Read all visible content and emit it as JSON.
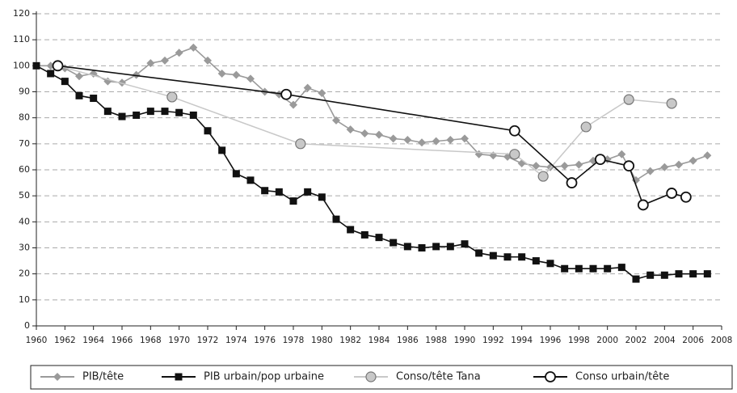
{
  "chart_data": {
    "type": "line",
    "xlim": [
      1960,
      2008
    ],
    "xticks": [
      1960,
      1962,
      1964,
      1966,
      1968,
      1970,
      1972,
      1974,
      1976,
      1978,
      1980,
      1982,
      1984,
      1986,
      1988,
      1990,
      1992,
      1994,
      1996,
      1998,
      2000,
      2002,
      2004,
      2006,
      2008
    ],
    "ylim": [
      0,
      120
    ],
    "yticks": [
      0,
      10,
      20,
      30,
      40,
      50,
      60,
      70,
      80,
      90,
      100,
      110,
      120
    ],
    "grid": true,
    "legend": "bottom",
    "series": [
      {
        "name": "PIB/tête",
        "color": "#9a9a9a",
        "marker": "diamond",
        "x": [
          1960,
          1961,
          1962,
          1963,
          1964,
          1965,
          1966,
          1967,
          1968,
          1969,
          1970,
          1971,
          1972,
          1973,
          1974,
          1975,
          1976,
          1977,
          1978,
          1979,
          1980,
          1981,
          1982,
          1983,
          1984,
          1985,
          1986,
          1987,
          1988,
          1989,
          1990,
          1991,
          1992,
          1993,
          1994,
          1995,
          1996,
          1997,
          1998,
          1999,
          2000,
          2001,
          2002,
          2003,
          2004,
          2005,
          2006,
          2007
        ],
        "values": [
          100,
          100,
          99,
          96,
          97,
          94,
          93.5,
          96.5,
          101,
          102,
          105,
          107,
          102,
          97,
          96.5,
          95,
          90,
          89,
          85,
          91.5,
          89.5,
          79,
          75.5,
          74,
          73.5,
          72,
          71.5,
          70.5,
          71,
          71.5,
          72,
          66,
          65.5,
          65,
          62.5,
          61.5,
          61,
          61.5,
          62,
          63.5,
          64,
          66,
          56,
          59.5,
          61,
          62,
          63.5,
          65.5
        ]
      },
      {
        "name": "PIB urbain/pop urbaine",
        "color": "#111111",
        "marker": "square",
        "x": [
          1960,
          1961,
          1962,
          1963,
          1964,
          1965,
          1966,
          1967,
          1968,
          1969,
          1970,
          1971,
          1972,
          1973,
          1974,
          1975,
          1976,
          1977,
          1978,
          1979,
          1980,
          1981,
          1982,
          1983,
          1984,
          1985,
          1986,
          1987,
          1988,
          1989,
          1990,
          1991,
          1992,
          1993,
          1994,
          1995,
          1996,
          1997,
          1998,
          1999,
          2000,
          2001,
          2002,
          2003,
          2004,
          2005,
          2006,
          2007
        ],
        "values": [
          100,
          97,
          94,
          88.5,
          87.5,
          82.5,
          80.5,
          81,
          82.5,
          82.5,
          82,
          81,
          75,
          67.5,
          58.5,
          56,
          52,
          51.5,
          48,
          51.5,
          49.5,
          41,
          37,
          35,
          34,
          32,
          30.5,
          30,
          30.5,
          30.5,
          31.5,
          28,
          27,
          26.5,
          26.5,
          25,
          24,
          22,
          22,
          22,
          22,
          22.5,
          18,
          19.5,
          19.5,
          20,
          20,
          20
        ]
      },
      {
        "name": "Conso/tête Tana",
        "color": "#c8c8c8",
        "marker": "circle-gray",
        "x": [
          1961.5,
          1969.5,
          1978.5,
          1993.5,
          1995.5,
          1998.5,
          2001.5,
          2004.5
        ],
        "values": [
          100,
          88,
          70,
          66,
          57.5,
          76.5,
          87,
          85.5
        ]
      },
      {
        "name": "Conso urbain/tête",
        "color": "#111111",
        "marker": "circle-white",
        "x": [
          1961.5,
          1977.5,
          1993.5,
          1997.5,
          1999.5,
          2001.5,
          2002.5,
          2004.5,
          2005.5
        ],
        "values": [
          100,
          89,
          75,
          55,
          64,
          61.5,
          46.5,
          51,
          49.5
        ]
      }
    ]
  }
}
